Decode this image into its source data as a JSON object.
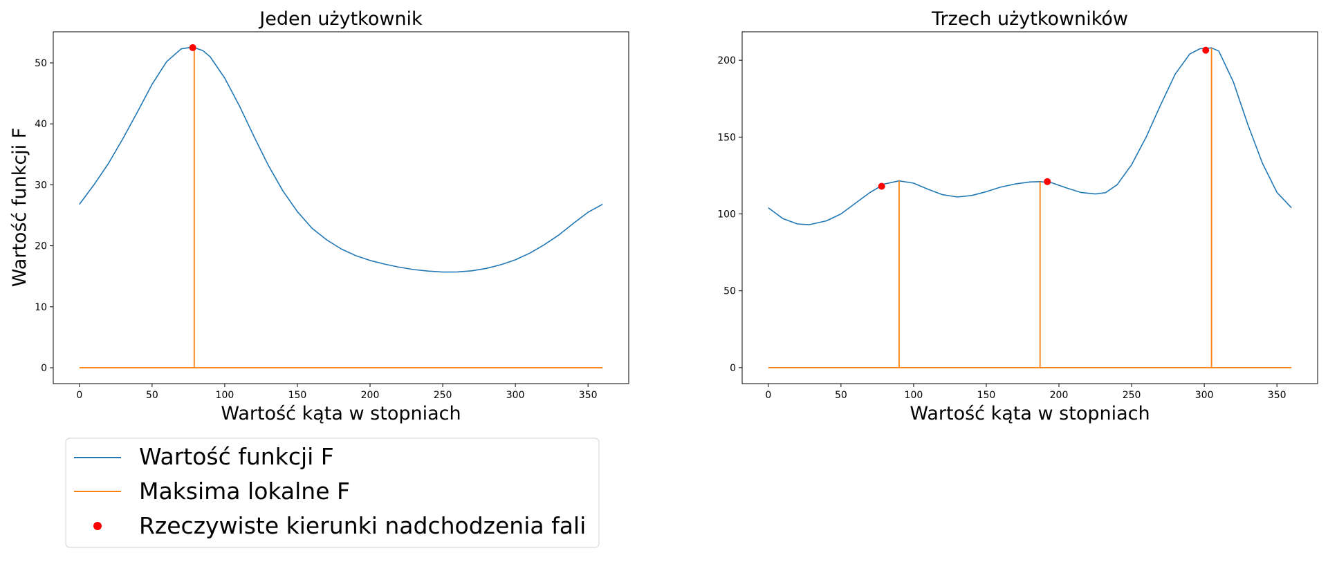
{
  "chart_data": [
    {
      "type": "line",
      "title": "Jeden użytkownik",
      "xlabel": "Wartość kąta w stopniach",
      "ylabel": "Wartość funkcji F",
      "xlim": [
        -18,
        378
      ],
      "ylim": [
        -2.6,
        55.1
      ],
      "xticks": [
        0,
        50,
        100,
        150,
        200,
        250,
        300,
        350
      ],
      "yticks": [
        0,
        10,
        20,
        30,
        40,
        50
      ],
      "grid": false,
      "series": [
        {
          "name": "Wartość funkcji F",
          "color": "#1f77b4",
          "x": [
            0,
            10,
            20,
            30,
            40,
            50,
            60,
            70,
            78,
            85,
            90,
            100,
            110,
            120,
            130,
            140,
            150,
            160,
            170,
            180,
            190,
            200,
            210,
            220,
            230,
            240,
            250,
            254,
            260,
            270,
            280,
            290,
            300,
            310,
            320,
            330,
            340,
            350,
            360
          ],
          "y": [
            26.8,
            30.0,
            33.5,
            37.6,
            42.0,
            46.5,
            50.2,
            52.3,
            52.6,
            52.0,
            51.0,
            47.5,
            43.0,
            38.0,
            33.2,
            29.0,
            25.6,
            22.9,
            21.0,
            19.5,
            18.4,
            17.6,
            17.0,
            16.5,
            16.1,
            15.85,
            15.7,
            15.7,
            15.72,
            15.9,
            16.3,
            16.9,
            17.7,
            18.8,
            20.2,
            21.8,
            23.7,
            25.5,
            26.8
          ]
        },
        {
          "name": "Maksima lokalne F",
          "color": "#ff7f0e",
          "baseline": 0,
          "x_range": [
            0,
            360
          ],
          "peaks": [
            {
              "x": 79,
              "y": 52.6
            }
          ]
        },
        {
          "name": "Rzeczywiste kierunki nadchodzenia fali",
          "color": "#ff0000",
          "points": [
            {
              "x": 78,
              "y": 52.5
            }
          ]
        }
      ],
      "legend": {
        "placement": "below-left",
        "entries": [
          "Wartość funkcji F",
          "Maksima lokalne F",
          "Rzeczywiste kierunki nadchodzenia fali"
        ]
      }
    },
    {
      "type": "line",
      "title": "Trzech użytkowników",
      "xlabel": "Wartość kąta w stopniach",
      "ylabel": "",
      "xlim": [
        -18,
        378
      ],
      "ylim": [
        -10.4,
        218.5
      ],
      "xticks": [
        0,
        50,
        100,
        150,
        200,
        250,
        300,
        350
      ],
      "yticks": [
        0,
        50,
        100,
        150,
        200
      ],
      "grid": false,
      "series": [
        {
          "name": "Wartość funkcji F",
          "color": "#1f77b4",
          "x": [
            0,
            10,
            20,
            28,
            40,
            50,
            60,
            70,
            80,
            90,
            100,
            110,
            120,
            130,
            140,
            150,
            160,
            170,
            180,
            187,
            195,
            205,
            215,
            225,
            232,
            240,
            250,
            260,
            270,
            280,
            290,
            297,
            305,
            310,
            320,
            330,
            340,
            350,
            360
          ],
          "y": [
            104,
            97,
            93.5,
            93,
            95.5,
            100,
            107,
            114,
            119.5,
            121.5,
            120,
            116,
            112.5,
            111,
            112,
            114.5,
            117.5,
            119.5,
            120.8,
            121,
            120.3,
            117,
            114,
            113,
            113.8,
            119,
            132,
            150,
            171,
            191,
            204,
            207.5,
            208,
            206,
            186,
            158,
            133,
            114,
            104
          ]
        },
        {
          "name": "Maksima lokalne F",
          "color": "#ff7f0e",
          "baseline": 0,
          "x_range": [
            0,
            360
          ],
          "peaks": [
            {
              "x": 90,
              "y": 121.5
            },
            {
              "x": 187,
              "y": 121
            },
            {
              "x": 305,
              "y": 208
            }
          ]
        },
        {
          "name": "Rzeczywiste kierunki nadchodzenia fali",
          "color": "#ff0000",
          "points": [
            {
              "x": 78,
              "y": 118
            },
            {
              "x": 192,
              "y": 121
            },
            {
              "x": 301,
              "y": 206.5
            }
          ]
        }
      ]
    }
  ]
}
